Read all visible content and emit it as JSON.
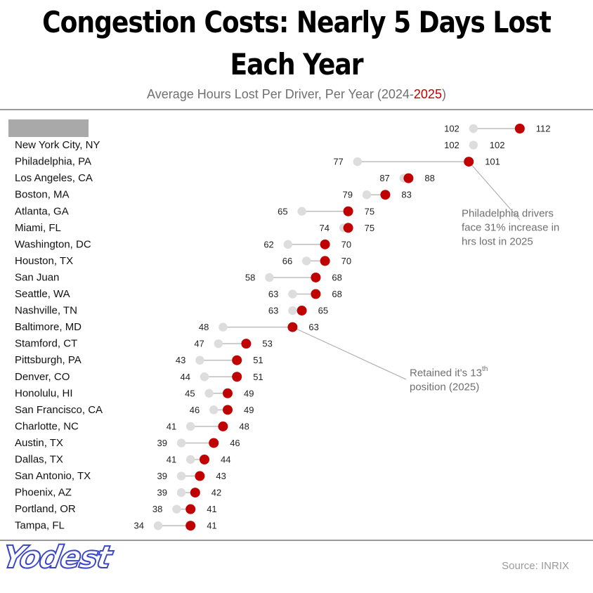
{
  "title": "Congestion Costs: Nearly 5 Days Lost Each Year",
  "subtitle": {
    "prefix": "Average Hours Lost Per Driver, Per Year (2024-",
    "highlight": "2025",
    "suffix": ")"
  },
  "source": "Source: INRIX",
  "logo": "Yodest",
  "colors": {
    "y2024": "#dddddd",
    "y2025": "#c00000",
    "connector": "#bdbdbd",
    "redacted": "#a9a9a9"
  },
  "chart_data": {
    "type": "dumbbell",
    "series": [
      {
        "name": "2024",
        "color": "#dddddd"
      },
      {
        "name": "2025",
        "color": "#c00000"
      }
    ],
    "categories": [
      "",
      "New York City, NY",
      "Philadelphia, PA",
      "Los Angeles, CA",
      "Boston, MA",
      "Atlanta, GA",
      "Miami, FL",
      "Washington, DC",
      "Houston, TX",
      "San Juan",
      "Seattle, WA",
      "Nashville, TN",
      "Baltimore, MD",
      "Stamford, CT",
      "Pittsburgh, PA",
      "Denver, CO",
      "Honolulu, HI",
      "San Francisco, CA",
      "Charlotte, NC",
      "Austin, TX",
      "Dallas, TX",
      "San Antonio, TX",
      "Phoenix, AZ",
      "Portland, OR",
      "Tampa, FL"
    ],
    "values_2024": [
      102,
      102,
      77,
      87,
      79,
      65,
      74,
      62,
      66,
      58,
      63,
      63,
      48,
      47,
      43,
      44,
      45,
      46,
      41,
      39,
      41,
      39,
      39,
      38,
      34
    ],
    "values_2025": [
      112,
      102,
      101,
      88,
      83,
      75,
      75,
      70,
      70,
      68,
      68,
      65,
      63,
      53,
      51,
      51,
      49,
      49,
      48,
      46,
      44,
      43,
      42,
      41,
      41
    ],
    "first_category_redacted": true,
    "annotations": [
      {
        "target": "Philadelphia, PA",
        "lines": [
          "Philadelphia drivers",
          "face 31% increase in",
          "hrs lost in 2025"
        ]
      },
      {
        "target": "Baltimore, MD",
        "text": "Retained it's 13",
        "sup": "th",
        "line2": "position (2025)"
      }
    ]
  }
}
